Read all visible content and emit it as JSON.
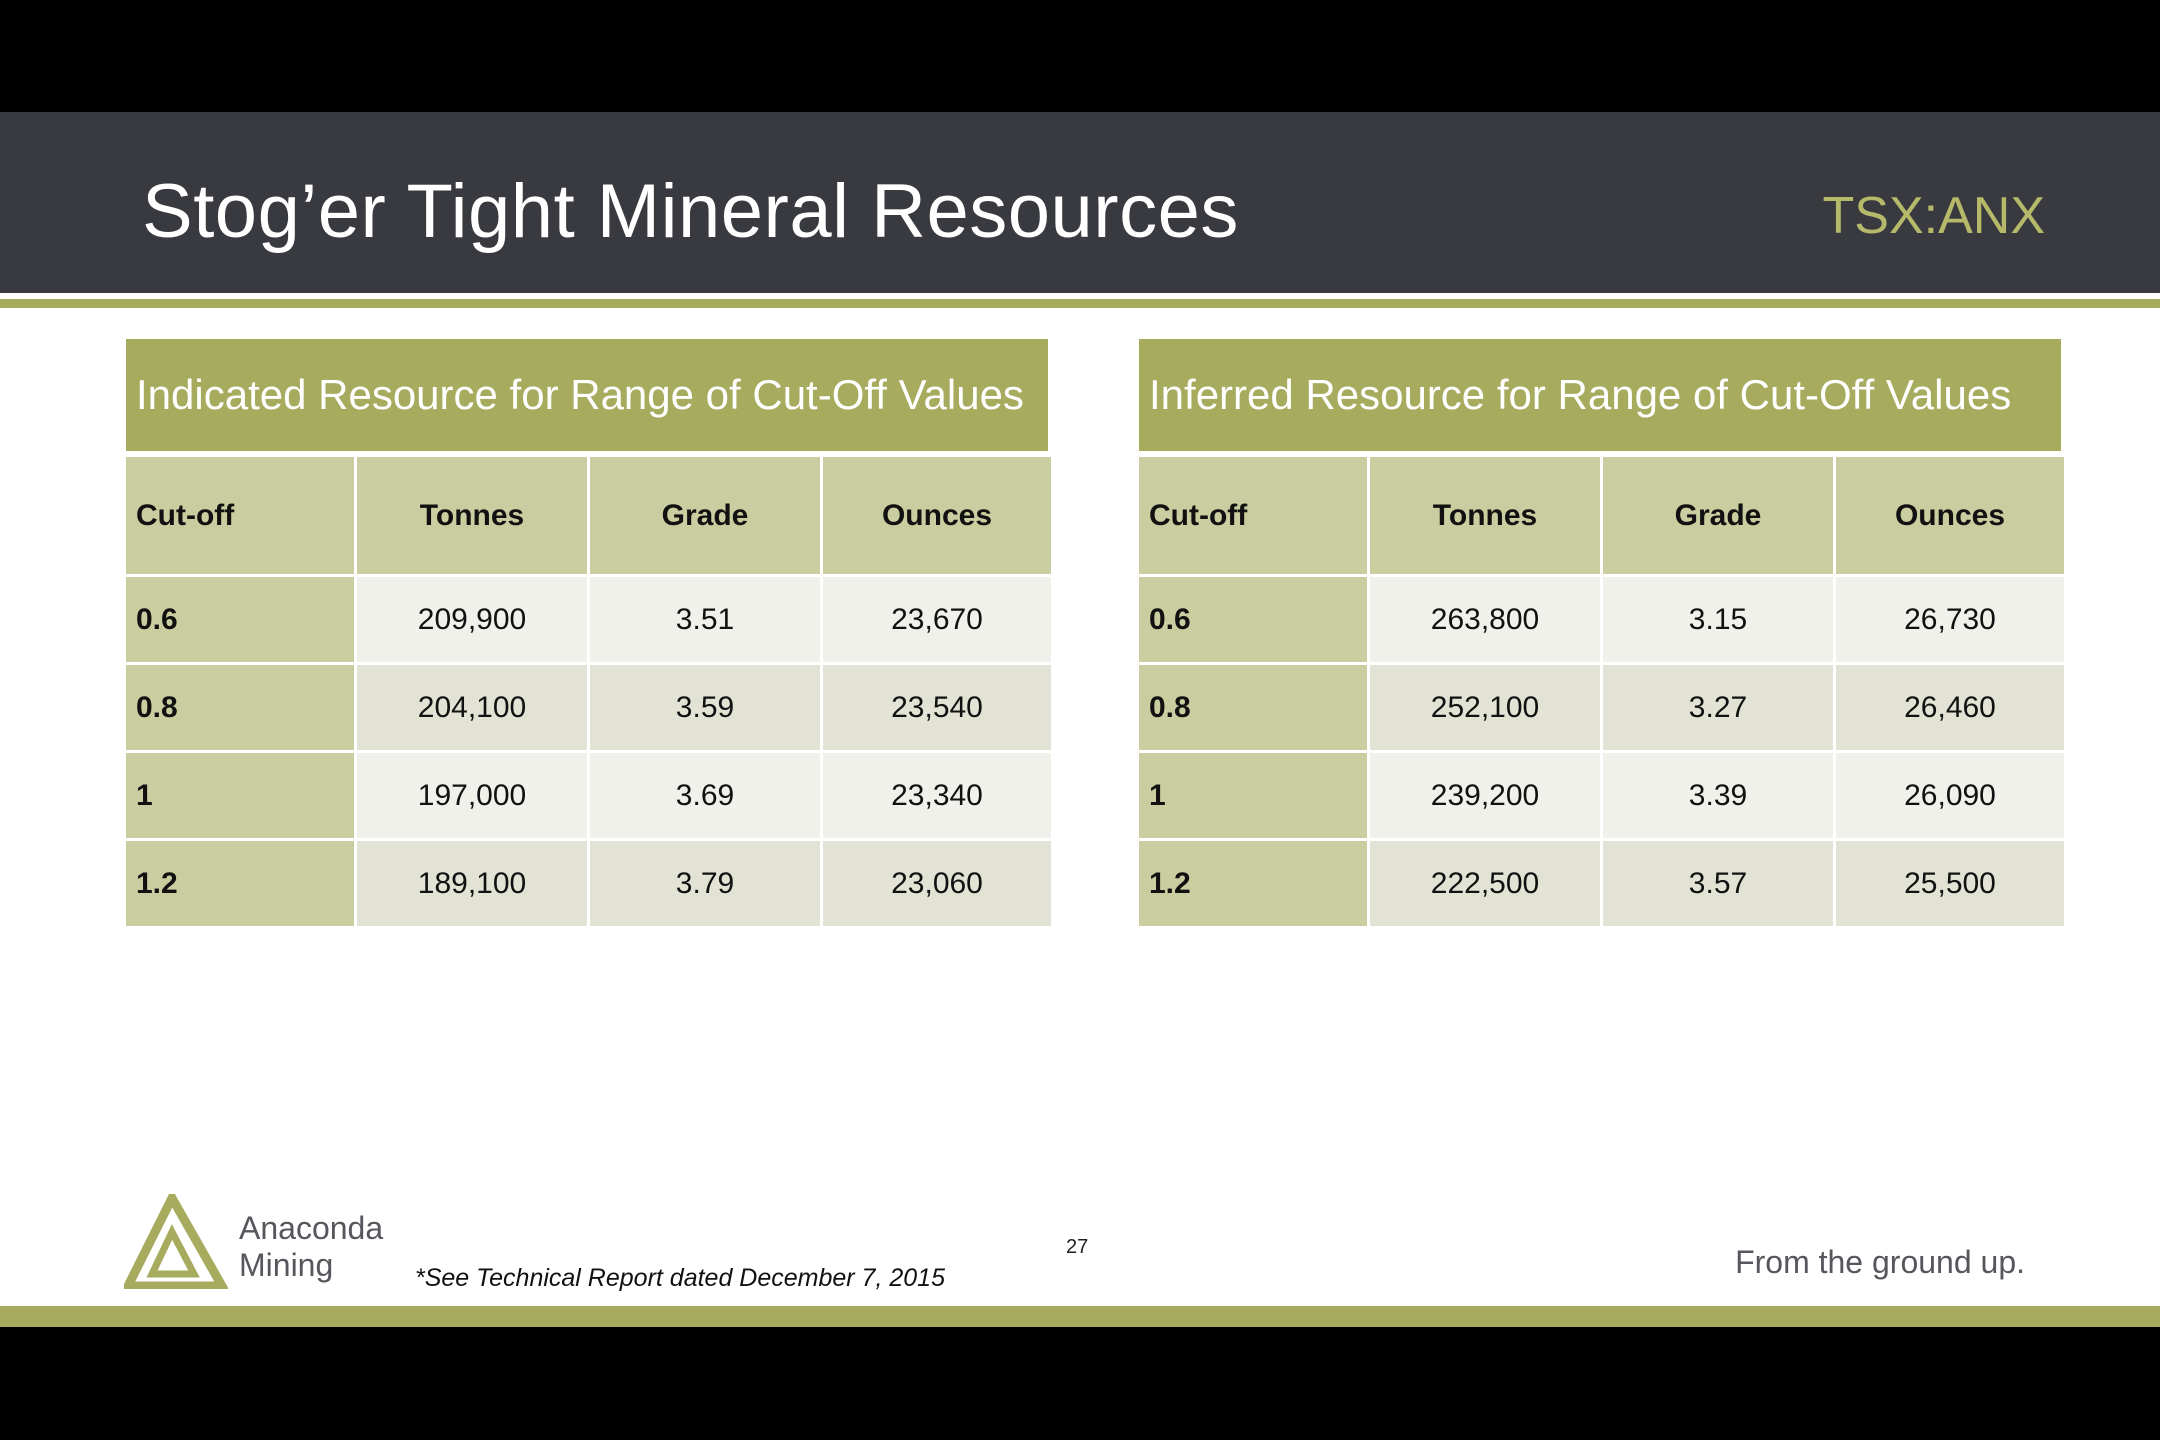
{
  "header": {
    "title": "Stog’er Tight Mineral Resources",
    "ticker": "TSX:ANX"
  },
  "tables": [
    {
      "title": "Indicated Resource for Range of Cut-Off Values",
      "columns": [
        "Cut-off",
        "Tonnes",
        "Grade",
        "Ounces"
      ],
      "rows": [
        [
          "0.6",
          "209,900",
          "3.51",
          "23,670"
        ],
        [
          "0.8",
          "204,100",
          "3.59",
          "23,540"
        ],
        [
          "1",
          "197,000",
          "3.69",
          "23,340"
        ],
        [
          "1.2",
          "189,100",
          "3.79",
          "23,060"
        ]
      ]
    },
    {
      "title": "Inferred Resource for Range of Cut-Off Values",
      "columns": [
        "Cut-off",
        "Tonnes",
        "Grade",
        "Ounces"
      ],
      "rows": [
        [
          "0.6",
          "263,800",
          "3.15",
          "26,730"
        ],
        [
          "0.8",
          "252,100",
          "3.27",
          "26,460"
        ],
        [
          "1",
          "239,200",
          "3.39",
          "26,090"
        ],
        [
          "1.2",
          "222,500",
          "3.57",
          "25,500"
        ]
      ]
    }
  ],
  "footer": {
    "logo_line1": "Anaconda",
    "logo_line2": "Mining",
    "footnote": "*See Technical Report dated December 7, 2015",
    "page_number": "27",
    "tagline": "From the ground up."
  },
  "colors": {
    "header_bg": "#393a3f",
    "accent_olive": "#a7ab5e",
    "ticker": "#b6b86a",
    "cell_header": "#cacd9f",
    "cell_light": "#f0f1ea",
    "cell_mid": "#e2e3d4"
  }
}
